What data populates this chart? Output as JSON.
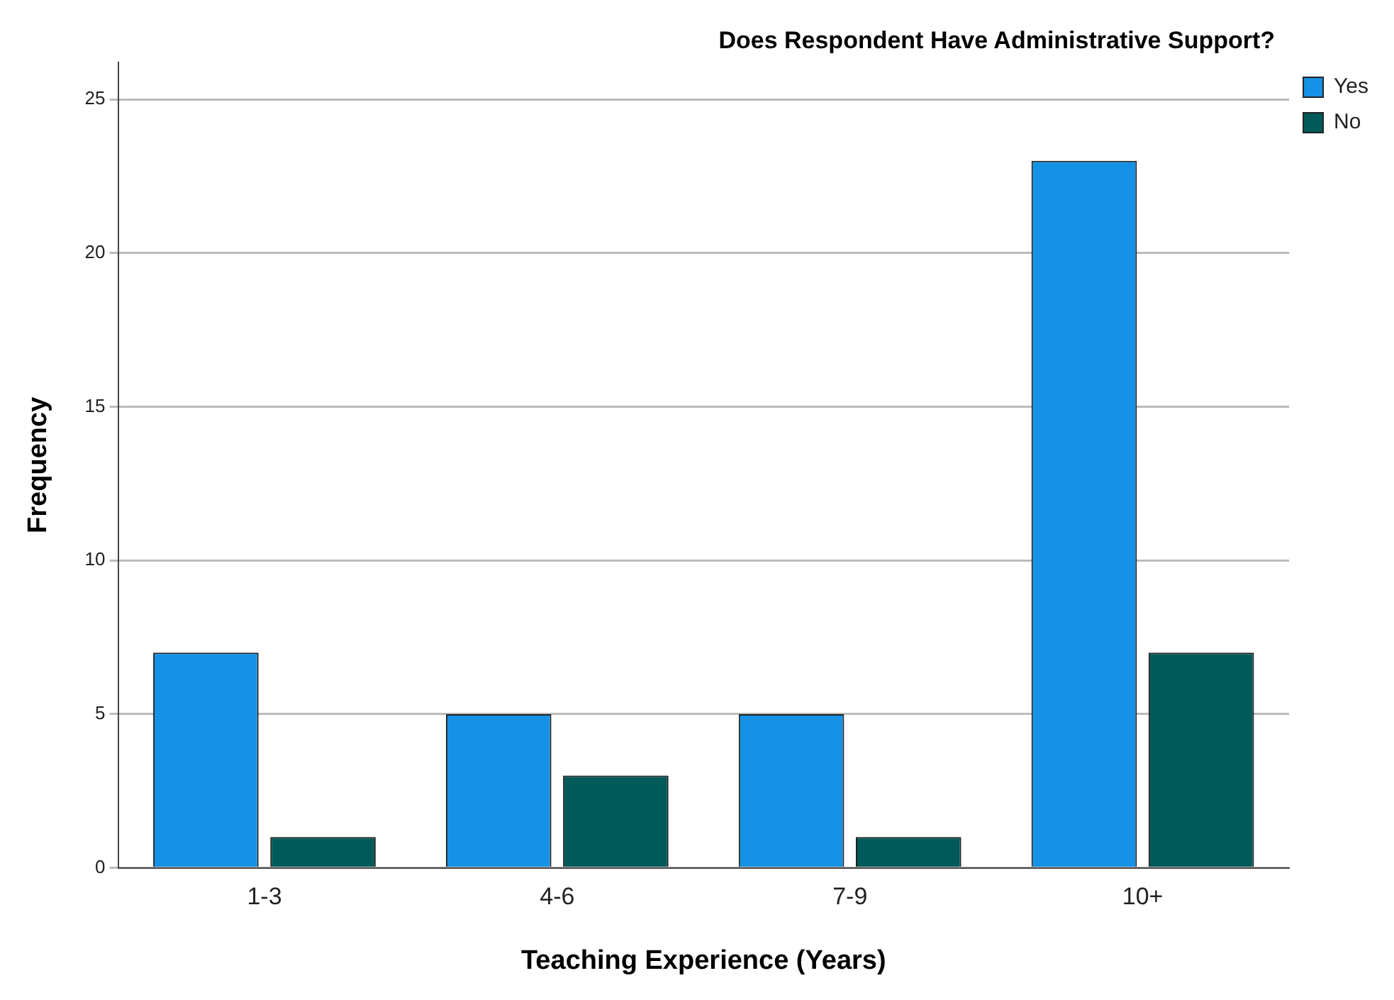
{
  "chart_data": {
    "type": "bar",
    "legend_title": "Does Respondent Have Administrative Support?",
    "xlabel": "Teaching Experience (Years)",
    "ylabel": "Frequency",
    "categories": [
      "1-3",
      "4-6",
      "7-9",
      "10+"
    ],
    "series": [
      {
        "name": "Yes",
        "color": "#1592e6",
        "values": [
          7,
          5,
          5,
          23
        ]
      },
      {
        "name": "No",
        "color": "#005a5a",
        "values": [
          1,
          3,
          1,
          7
        ]
      }
    ],
    "ylim": [
      0,
      26.2
    ],
    "yticks": [
      0,
      5,
      10,
      15,
      20,
      25
    ],
    "grid": "y",
    "legend": "top right"
  }
}
